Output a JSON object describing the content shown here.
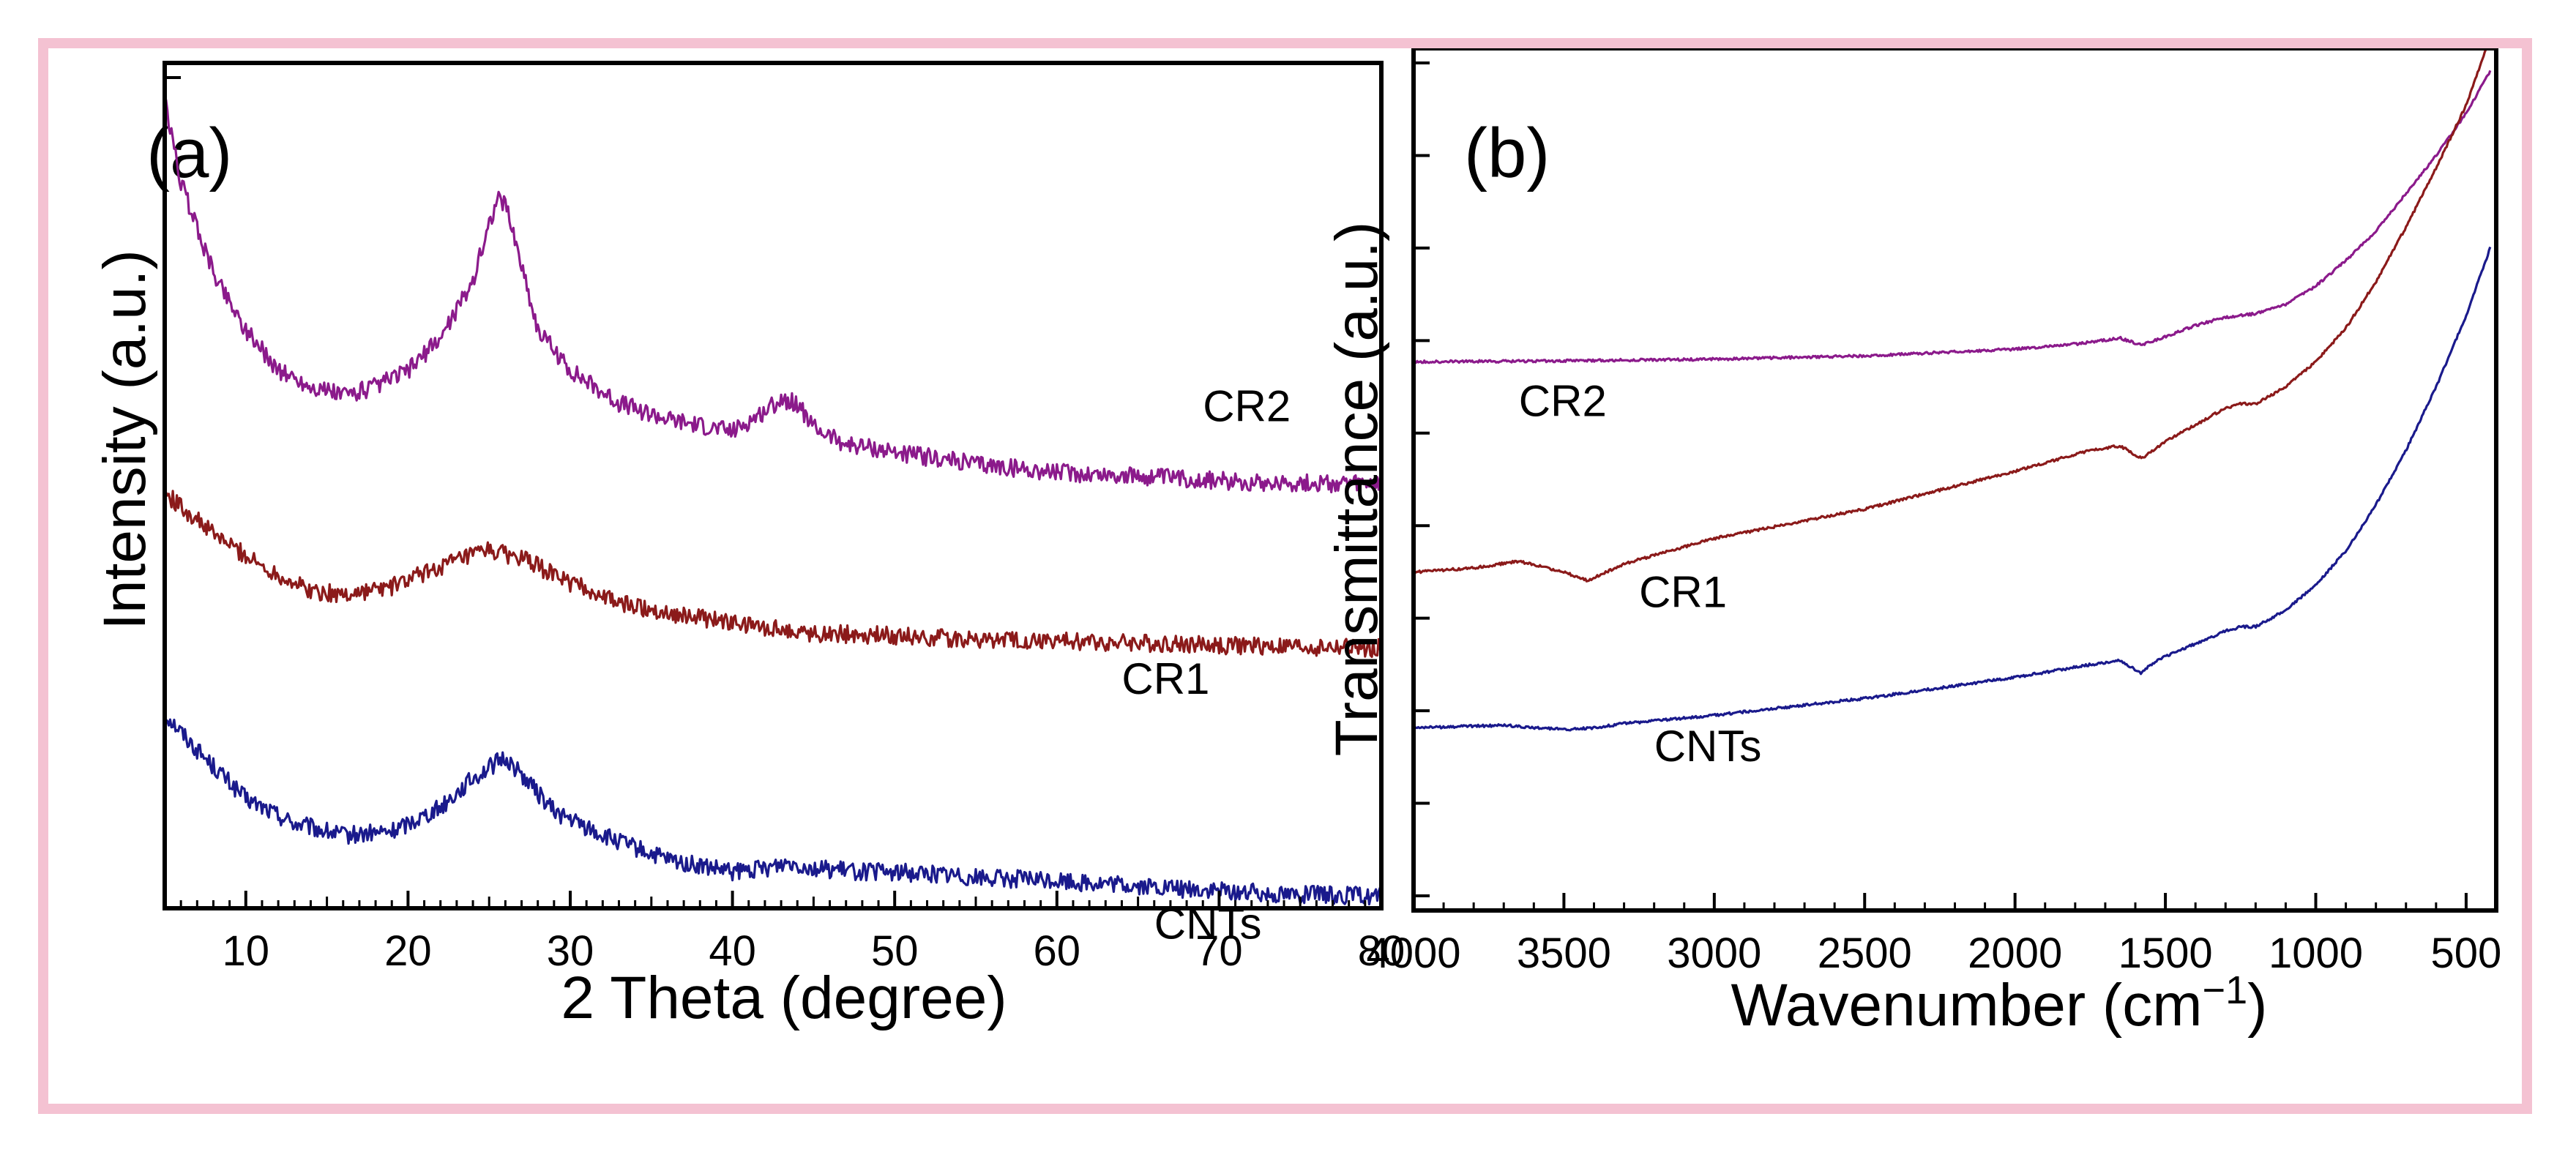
{
  "figure_border_color": "#f4c2d2",
  "chart_data": [
    {
      "type": "line",
      "panel_label": "(a)",
      "title": "",
      "xlabel": "2 Theta (degree)",
      "ylabel": "Intensity (a.u.)",
      "xlim": [
        5,
        80
      ],
      "ylim": [
        0,
        100
      ],
      "y_ticks_shown": false,
      "x_ticks": [
        10,
        20,
        30,
        40,
        50,
        60,
        70,
        80
      ],
      "x_tick_labels": [
        "10",
        "20",
        "30",
        "40",
        "50",
        "60",
        "70",
        "80"
      ],
      "series": [
        {
          "name": "CNTs",
          "color": "#1a1a8c",
          "x": [
            5,
            7,
            10,
            13,
            16,
            19,
            22,
            24,
            25.5,
            26,
            27,
            29,
            32,
            36,
            40,
            42,
            43.5,
            45,
            48,
            52,
            56,
            60,
            65,
            70,
            75,
            80
          ],
          "y": [
            23,
            18.5,
            12.5,
            9.5,
            8.0,
            8.5,
            11.5,
            15.0,
            17.0,
            17.5,
            15.5,
            11.0,
            8.0,
            5.0,
            3.5,
            4.0,
            4.8,
            4.0,
            3.6,
            3.4,
            2.8,
            2.5,
            1.8,
            1.2,
            0.8,
            0.6
          ]
        },
        {
          "name": "CR1",
          "color": "#8b1a1a",
          "x": [
            5,
            8,
            11,
            14,
            16,
            19,
            22,
            25,
            27,
            30,
            33,
            37,
            40,
            45,
            50,
            55,
            60,
            65,
            70,
            75,
            80
          ],
          "y": [
            50,
            45,
            41,
            38,
            37.5,
            38.5,
            41,
            43,
            42,
            39,
            36.5,
            35,
            34,
            32.8,
            32.5,
            32,
            31.8,
            31.6,
            31.3,
            31.1,
            31.0
          ]
        },
        {
          "name": "CR2",
          "color": "#8b1a8b",
          "x": [
            5,
            6,
            8,
            10,
            12,
            14,
            16,
            18,
            20,
            22,
            24,
            25,
            25.5,
            26,
            27,
            28,
            30,
            33,
            36,
            40,
            42,
            43,
            44,
            45,
            47,
            50,
            55,
            60,
            65,
            70,
            75,
            80
          ],
          "y": [
            98,
            88,
            77,
            70,
            65,
            63,
            62,
            63,
            65,
            69,
            76,
            83,
            86,
            85.5,
            78,
            70,
            65,
            61,
            59,
            57.5,
            60,
            61.5,
            61,
            58,
            56,
            55,
            53.5,
            52.5,
            52,
            51.5,
            51.2,
            51
          ]
        }
      ]
    },
    {
      "type": "line",
      "panel_label": "(b)",
      "title": "",
      "xlabel": "Wavenumber (cm",
      "xlabel_superscript": "−1",
      "xlabel_close": ")",
      "ylabel": "Transmittance (a.u.)",
      "xlim": [
        4000,
        400
      ],
      "ylim": [
        0,
        100
      ],
      "y_ticks_shown": false,
      "x_ticks": [
        4000,
        3500,
        3000,
        2500,
        2000,
        1500,
        1000,
        500
      ],
      "x_tick_labels": [
        "4000",
        "3500",
        "3000",
        "2500",
        "2000",
        "1500",
        "1000",
        "500"
      ],
      "series": [
        {
          "name": "CR2",
          "color": "#8b1a8b",
          "x": [
            4000,
            3500,
            3000,
            2500,
            2000,
            1800,
            1650,
            1580,
            1500,
            1400,
            1300,
            1200,
            1100,
            1000,
            900,
            800,
            700,
            600,
            500,
            420
          ],
          "y": [
            64.5,
            64.6,
            64.8,
            65.2,
            66,
            66.6,
            67.3,
            66.5,
            67.5,
            68.8,
            69.8,
            70.2,
            71.3,
            73.5,
            76.5,
            80,
            84.5,
            89,
            94,
            99
          ]
        },
        {
          "name": "CR1",
          "color": "#8b1a1a",
          "x": [
            4000,
            3800,
            3650,
            3500,
            3420,
            3300,
            3000,
            2500,
            2000,
            1750,
            1650,
            1580,
            1500,
            1400,
            1300,
            1250,
            1200,
            1100,
            1000,
            900,
            800,
            700,
            600,
            500,
            430
          ],
          "y": [
            39.5,
            40,
            40.8,
            39.5,
            38.5,
            40.5,
            43.5,
            47,
            51.5,
            54,
            54.5,
            53,
            55,
            57,
            59,
            59.5,
            59.5,
            61.5,
            64.5,
            68.5,
            74,
            80.5,
            87.5,
            95,
            102
          ]
        },
        {
          "name": "CNTs",
          "color": "#1a1a8c",
          "x": [
            4000,
            3700,
            3500,
            3400,
            3300,
            3000,
            2500,
            2000,
            1750,
            1650,
            1580,
            1550,
            1500,
            1400,
            1300,
            1250,
            1200,
            1100,
            1000,
            900,
            800,
            700,
            600,
            500,
            420
          ],
          "y": [
            21,
            21.3,
            20.8,
            21,
            21.5,
            22.5,
            24.5,
            27,
            28.5,
            29,
            27.5,
            28.5,
            29.5,
            31,
            32.5,
            33,
            33,
            35,
            38,
            42,
            47.5,
            54,
            61.5,
            70,
            78
          ]
        }
      ]
    }
  ]
}
